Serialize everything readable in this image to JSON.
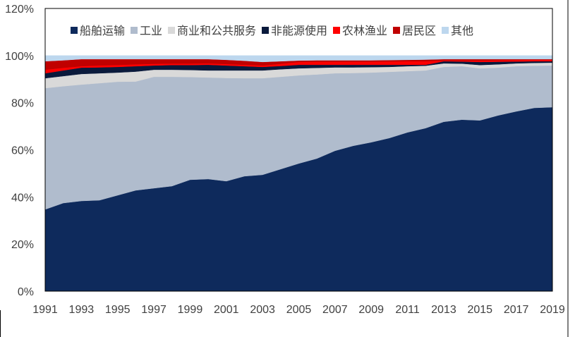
{
  "chart_data": {
    "type": "area",
    "stacked": true,
    "title": "",
    "xlabel": "",
    "ylabel": "",
    "ylim": [
      0,
      120
    ],
    "yticks": [
      "0%",
      "20%",
      "40%",
      "60%",
      "80%",
      "100%",
      "120%"
    ],
    "ytick_values": [
      0,
      20,
      40,
      60,
      80,
      100,
      120
    ],
    "xticks": [
      "1991",
      "1993",
      "1995",
      "1997",
      "1999",
      "2001",
      "2003",
      "2005",
      "2007",
      "2009",
      "2011",
      "2013",
      "2015",
      "2017",
      "2019"
    ],
    "x": [
      1991,
      1992,
      1993,
      1994,
      1995,
      1996,
      1997,
      1998,
      1999,
      2000,
      2001,
      2002,
      2003,
      2004,
      2005,
      2006,
      2007,
      2008,
      2009,
      2010,
      2011,
      2012,
      2013,
      2014,
      2015,
      2016,
      2017,
      2018,
      2019
    ],
    "legend_position": "top",
    "grid": false,
    "series": [
      {
        "name": "船舶运输",
        "color": "#0e2a5c",
        "values": [
          34.7,
          37.4,
          38.3,
          38.6,
          40.7,
          42.8,
          43.7,
          44.6,
          47.3,
          47.6,
          46.7,
          48.8,
          49.4,
          51.8,
          54.2,
          56.3,
          59.6,
          61.7,
          63.2,
          65.0,
          67.4,
          69.2,
          71.9,
          72.8,
          72.5,
          74.6,
          76.3,
          77.8,
          78.1
        ]
      },
      {
        "name": "工业",
        "color": "#b0bccd",
        "values": [
          51.5,
          49.6,
          49.4,
          49.7,
          48.2,
          46.2,
          47.3,
          46.4,
          43.6,
          43.1,
          43.8,
          41.6,
          41.0,
          39.2,
          37.4,
          35.7,
          32.9,
          30.9,
          29.6,
          28.1,
          26.0,
          24.5,
          23.3,
          22.7,
          22.1,
          20.3,
          19.2,
          17.9,
          17.7
        ]
      },
      {
        "name": "商业和公共服务",
        "color": "#d9d9d9",
        "values": [
          4.2,
          4.3,
          4.5,
          4.2,
          3.9,
          4.2,
          3.0,
          3.0,
          3.0,
          3.0,
          3.2,
          3.3,
          3.3,
          3.2,
          3.0,
          2.8,
          2.5,
          2.4,
          2.3,
          2.1,
          2.1,
          2.0,
          1.5,
          1.1,
          1.4,
          1.4,
          1.2,
          1.2,
          1.2
        ]
      },
      {
        "name": "非能源使用",
        "color": "#0a1a3c",
        "values": [
          2.1,
          2.4,
          2.7,
          2.5,
          2.4,
          2.3,
          1.8,
          2.0,
          2.1,
          2.4,
          2.1,
          1.8,
          1.5,
          1.4,
          1.5,
          1.3,
          1.1,
          1.1,
          1.0,
          0.9,
          0.6,
          0.4,
          0.9,
          0.9,
          1.3,
          1.1,
          0.8,
          0.7,
          0.6
        ]
      },
      {
        "name": "农林渔业",
        "color": "#ff0000",
        "values": [
          1.5,
          1.1,
          0.6,
          0.8,
          0.8,
          0.8,
          0.7,
          0.6,
          0.6,
          0.6,
          0.6,
          0.6,
          0.6,
          0.9,
          1.2,
          1.3,
          1.3,
          1.3,
          1.3,
          1.4,
          1.5,
          1.5,
          0.3,
          0.4,
          0.6,
          0.6,
          0.6,
          0.6,
          0.6
        ]
      },
      {
        "name": "居民区",
        "color": "#c00000",
        "values": [
          3.6,
          3.2,
          3.0,
          2.7,
          2.5,
          2.2,
          2.0,
          1.9,
          1.9,
          1.8,
          1.8,
          1.7,
          1.5,
          1.1,
          0.6,
          0.6,
          0.6,
          0.6,
          0.6,
          0.6,
          0.6,
          0.7,
          0.6,
          0.6,
          0.6,
          0.5,
          0.4,
          0.3,
          0.3
        ]
      },
      {
        "name": "其他",
        "color": "#bdd7ee",
        "values": [
          2.4,
          2.0,
          1.5,
          1.5,
          1.5,
          1.5,
          1.5,
          1.5,
          1.5,
          1.5,
          1.8,
          2.2,
          2.7,
          2.4,
          2.1,
          2.0,
          2.0,
          2.0,
          2.0,
          1.9,
          1.8,
          1.7,
          1.5,
          1.5,
          1.5,
          1.5,
          1.5,
          1.5,
          1.5
        ]
      }
    ]
  }
}
